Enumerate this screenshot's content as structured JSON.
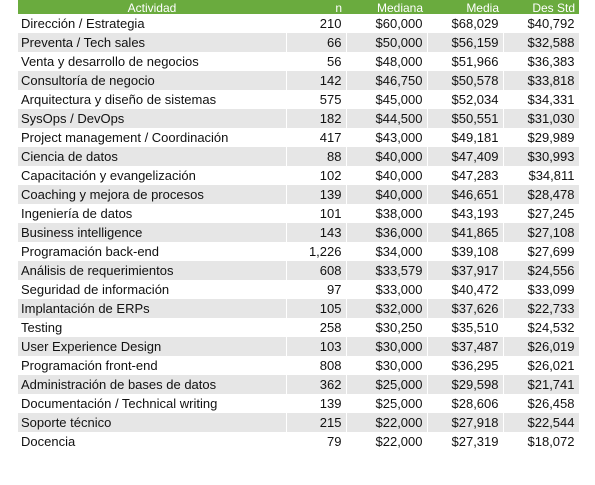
{
  "table": {
    "headers": [
      "Actividad",
      "n",
      "Mediana",
      "Media",
      "Des Std"
    ],
    "rows": [
      [
        "Dirección / Estrategia",
        "210",
        "$60,000",
        "$68,029",
        "$40,792"
      ],
      [
        "Preventa / Tech sales",
        "66",
        "$50,000",
        "$56,159",
        "$32,588"
      ],
      [
        "Venta y desarrollo de negocios",
        "56",
        "$48,000",
        "$51,966",
        "$36,383"
      ],
      [
        "Consultoría de negocio",
        "142",
        "$46,750",
        "$50,578",
        "$33,818"
      ],
      [
        "Arquitectura y diseño de sistemas",
        "575",
        "$45,000",
        "$52,034",
        "$34,331"
      ],
      [
        "SysOps / DevOps",
        "182",
        "$44,500",
        "$50,551",
        "$31,030"
      ],
      [
        "Project management / Coordinación",
        "417",
        "$43,000",
        "$49,181",
        "$29,989"
      ],
      [
        "Ciencia de datos",
        "88",
        "$40,000",
        "$47,409",
        "$30,993"
      ],
      [
        "Capacitación y evangelización",
        "102",
        "$40,000",
        "$47,283",
        "$34,811"
      ],
      [
        "Coaching y mejora de procesos",
        "139",
        "$40,000",
        "$46,651",
        "$28,478"
      ],
      [
        "Ingeniería de datos",
        "101",
        "$38,000",
        "$43,193",
        "$27,245"
      ],
      [
        "Business intelligence",
        "143",
        "$36,000",
        "$41,865",
        "$27,108"
      ],
      [
        "Programación back-end",
        "1,226",
        "$34,000",
        "$39,108",
        "$27,699"
      ],
      [
        "Análisis de requerimientos",
        "608",
        "$33,579",
        "$37,917",
        "$24,556"
      ],
      [
        "Seguridad de información",
        "97",
        "$33,000",
        "$40,472",
        "$33,099"
      ],
      [
        "Implantación de ERPs",
        "105",
        "$32,000",
        "$37,626",
        "$22,733"
      ],
      [
        "Testing",
        "258",
        "$30,250",
        "$35,510",
        "$24,532"
      ],
      [
        "User Experience Design",
        "103",
        "$30,000",
        "$37,487",
        "$26,019"
      ],
      [
        "Programación front-end",
        "808",
        "$30,000",
        "$36,295",
        "$26,021"
      ],
      [
        "Administración de bases de datos",
        "362",
        "$25,000",
        "$29,598",
        "$21,741"
      ],
      [
        "Documentación / Technical writing",
        "139",
        "$25,000",
        "$28,606",
        "$26,458"
      ],
      [
        "Soporte técnico",
        "215",
        "$22,000",
        "$27,918",
        "$22,544"
      ],
      [
        "Docencia",
        "79",
        "$22,000",
        "$27,319",
        "$18,072"
      ]
    ]
  },
  "colors": {
    "header_bg": "#6aab3e",
    "header_text": "#ffffff",
    "stripe": "#e6e6e6"
  }
}
